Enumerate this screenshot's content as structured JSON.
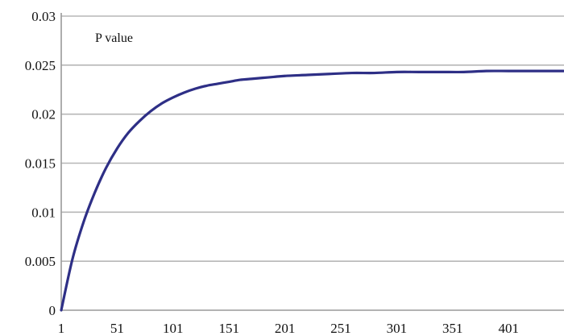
{
  "chart_data": {
    "type": "line",
    "title": "P value",
    "xlabel": "",
    "ylabel": "",
    "xlim": [
      1,
      450
    ],
    "ylim": [
      0,
      0.03
    ],
    "x_ticks": [
      1,
      51,
      101,
      151,
      201,
      251,
      301,
      351,
      401
    ],
    "x_tick_labels": [
      "1",
      "51",
      "101",
      "151",
      "201",
      "251",
      "301",
      "351",
      "401"
    ],
    "y_ticks": [
      0,
      0.005,
      0.01,
      0.015,
      0.02,
      0.025,
      0.03
    ],
    "y_tick_labels": [
      "0",
      "0.005",
      "0.01",
      "0.015",
      "0.02",
      "0.025",
      "0.03"
    ],
    "grid": true,
    "legend": "none",
    "series": [
      {
        "color": "#2e2f86",
        "x": [
          1,
          11,
          21,
          31,
          41,
          51,
          61,
          71,
          81,
          91,
          101,
          111,
          121,
          131,
          141,
          151,
          161,
          171,
          181,
          191,
          201,
          221,
          241,
          261,
          281,
          301,
          321,
          341,
          361,
          381,
          401,
          421,
          441,
          450
        ],
        "y": [
          0,
          0.0052,
          0.009,
          0.012,
          0.0145,
          0.0165,
          0.0181,
          0.0193,
          0.0203,
          0.0211,
          0.0217,
          0.0222,
          0.0226,
          0.0229,
          0.0231,
          0.0233,
          0.0235,
          0.0236,
          0.0237,
          0.0238,
          0.0239,
          0.024,
          0.0241,
          0.0242,
          0.0242,
          0.0243,
          0.0243,
          0.0243,
          0.0243,
          0.0244,
          0.0244,
          0.0244,
          0.0244,
          0.0244
        ]
      }
    ]
  }
}
